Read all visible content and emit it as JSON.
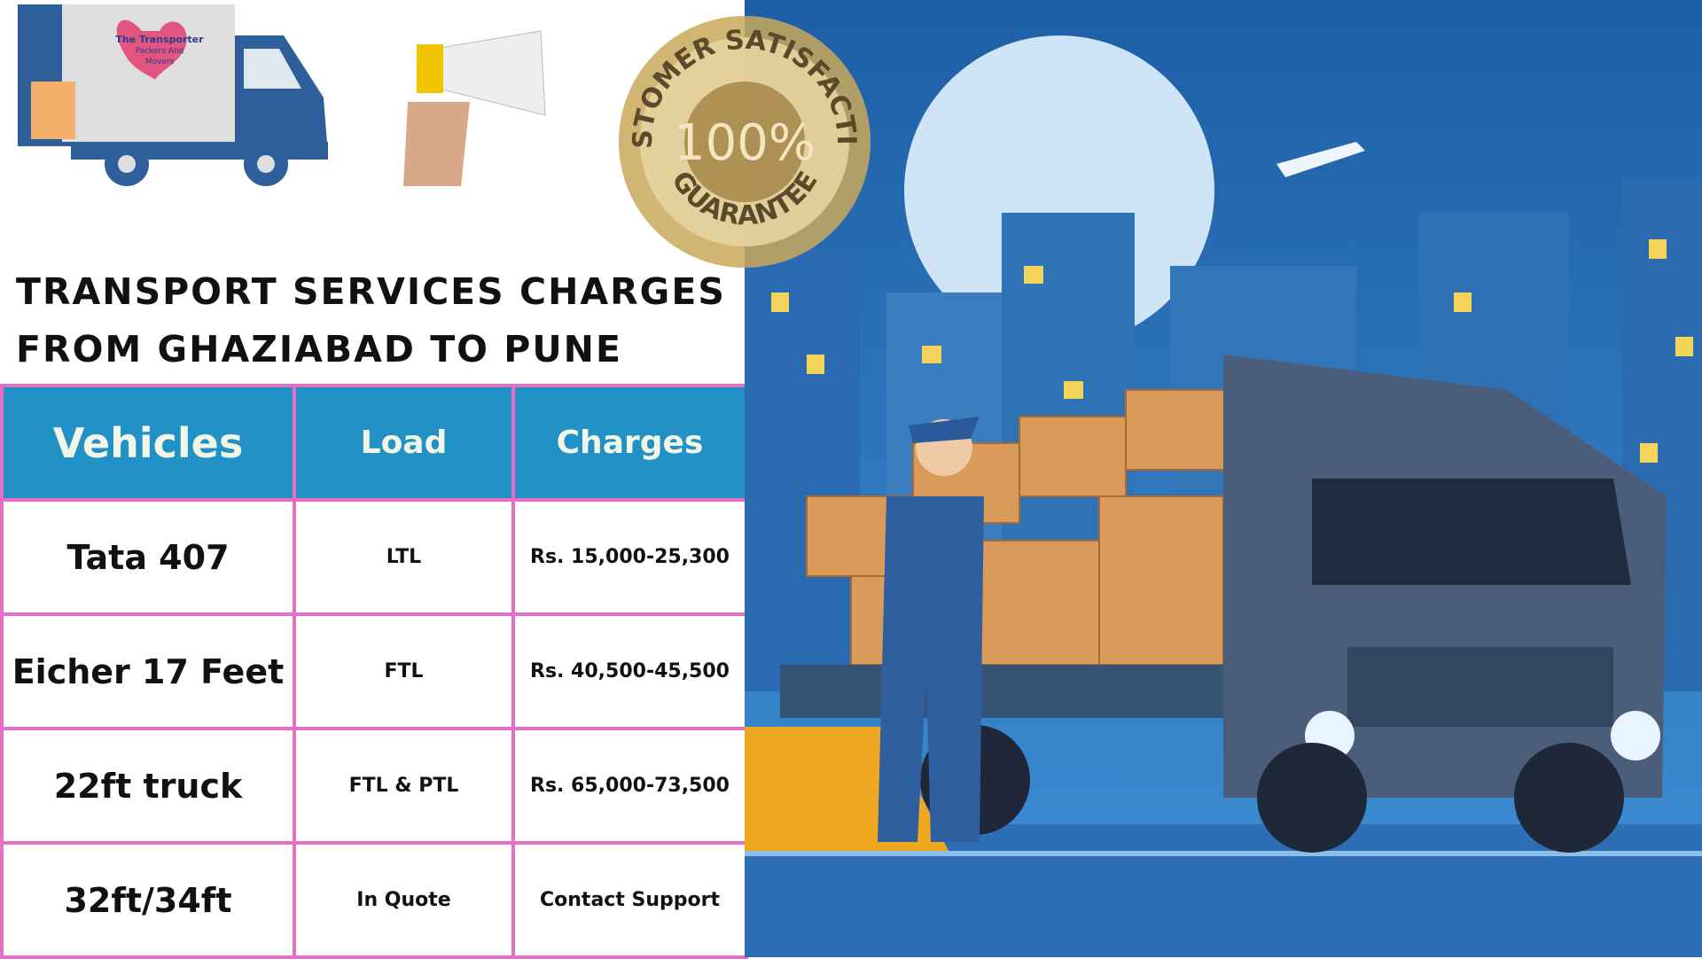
{
  "header": {
    "logo_lines": [
      "The Transporter",
      "Packers And",
      "Movers"
    ],
    "badge": {
      "top": "CUSTOMER SATISFACTION",
      "center": "100%",
      "bottom": "GUARANTEE"
    }
  },
  "title": [
    "TRANSPORT SERVICES CHARGES",
    "FROM GHAZIABAD TO PUNE"
  ],
  "table": {
    "columns": [
      "Vehicles",
      "Load",
      "Charges"
    ],
    "rows": [
      [
        "Tata 407",
        "LTL",
        "Rs. 15,000-25,300"
      ],
      [
        "Eicher 17 Feet",
        "FTL",
        "Rs. 40,500-45,500"
      ],
      [
        "22ft truck",
        "FTL & PTL",
        "Rs. 65,000-73,500"
      ],
      [
        "32ft/34ft",
        "In Quote",
        "Contact Support"
      ]
    ]
  }
}
